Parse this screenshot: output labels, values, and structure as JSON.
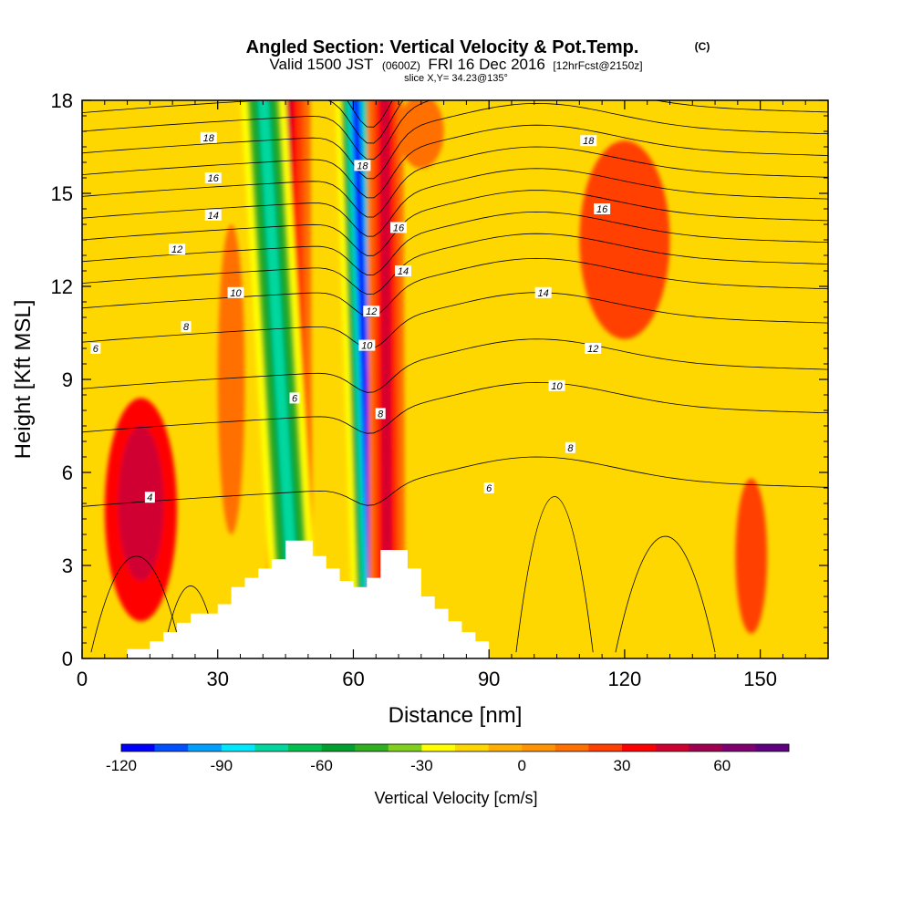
{
  "header": {
    "title": "Angled Section: Vertical Velocity & Pot.Temp.",
    "title_mark": "(C)",
    "valid_a": "Valid 1500 JST",
    "valid_b": "(0600Z)",
    "valid_c": "FRI 16 Dec 2016",
    "valid_d": "[12hrFcst@2150z]",
    "slice": "slice X,Y= 34.23@135°"
  },
  "chart_data": {
    "type": "contour-filled cross-section",
    "xlabel": "Distance [nm]",
    "ylabel": "Height [Kft MSL]",
    "xlim": [
      0,
      165
    ],
    "ylim": [
      0,
      18
    ],
    "x_ticks": [
      0,
      30,
      60,
      90,
      120,
      150
    ],
    "y_ticks": [
      0,
      3,
      6,
      9,
      12,
      15,
      18
    ],
    "colorbar": {
      "label": "Vertical Velocity [cm/s]",
      "min": -120,
      "step": 10,
      "tick_labels": [
        "-120",
        "-90",
        "-60",
        "-30",
        "0",
        "30",
        "60"
      ],
      "colors": [
        "#0000ff",
        "#0050ff",
        "#00a0ff",
        "#00e8ff",
        "#00d8a0",
        "#00c050",
        "#00a030",
        "#30b020",
        "#80d020",
        "#ffff00",
        "#ffd700",
        "#ffb000",
        "#ff9400",
        "#ff7000",
        "#ff4000",
        "#ff0000",
        "#d00030",
        "#a00050",
        "#800070",
        "#600080"
      ]
    },
    "terrain": [
      [
        10,
        0.3
      ],
      [
        15,
        0.3
      ],
      [
        15,
        0.55
      ],
      [
        18,
        0.55
      ],
      [
        18,
        0.85
      ],
      [
        21,
        0.85
      ],
      [
        21,
        1.15
      ],
      [
        24,
        1.15
      ],
      [
        24,
        1.45
      ],
      [
        30,
        1.45
      ],
      [
        30,
        1.75
      ],
      [
        33,
        1.75
      ],
      [
        33,
        2.3
      ],
      [
        36,
        2.3
      ],
      [
        36,
        2.6
      ],
      [
        39,
        2.6
      ],
      [
        39,
        2.9
      ],
      [
        42,
        2.9
      ],
      [
        42,
        3.2
      ],
      [
        45,
        3.2
      ],
      [
        45,
        3.8
      ],
      [
        51,
        3.8
      ],
      [
        51,
        3.3
      ],
      [
        54,
        3.3
      ],
      [
        54,
        2.9
      ],
      [
        57,
        2.9
      ],
      [
        57,
        2.5
      ],
      [
        60,
        2.5
      ],
      [
        60,
        2.3
      ],
      [
        63,
        2.3
      ],
      [
        63,
        2.6
      ],
      [
        66,
        2.6
      ],
      [
        66,
        3.5
      ],
      [
        72,
        3.5
      ],
      [
        72,
        2.9
      ],
      [
        75,
        2.9
      ],
      [
        75,
        2.0
      ],
      [
        78,
        2.0
      ],
      [
        78,
        1.6
      ],
      [
        81,
        1.6
      ],
      [
        81,
        1.2
      ],
      [
        84,
        1.2
      ],
      [
        84,
        0.85
      ],
      [
        87,
        0.85
      ],
      [
        87,
        0.55
      ],
      [
        90,
        0.55
      ],
      [
        90,
        0.3
      ]
    ],
    "vv_cells": [
      {
        "x": 13,
        "y": 4.8,
        "rx": 8,
        "ry": 3.6,
        "w": 30
      },
      {
        "x": 13,
        "y": 5.0,
        "rx": 5,
        "ry": 2.5,
        "w": 40
      },
      {
        "x": 120,
        "y": 13.5,
        "rx": 10,
        "ry": 3.2,
        "w": 20
      },
      {
        "x": 148,
        "y": 3.3,
        "rx": 3.5,
        "ry": 2.5,
        "w": 20
      },
      {
        "x": 33,
        "y": 9,
        "rx": 3,
        "ry": 5,
        "w": 10
      },
      {
        "x": 75,
        "y": 17,
        "rx": 5,
        "ry": 1.2,
        "w": 15
      }
    ],
    "vv_bands": [
      {
        "name": "updraft-west",
        "top_x": 45.5,
        "bot_x": 46,
        "half": [
          5,
          3.5,
          2,
          0.9
        ],
        "w": [
          10,
          20,
          30,
          40
        ]
      },
      {
        "name": "downdraft-west",
        "top_x": 40,
        "bot_x": 47.5,
        "half": [
          5,
          3.5,
          2.2,
          1.2
        ],
        "w": [
          -30,
          -45,
          -60,
          -75
        ]
      },
      {
        "name": "downdraft-main",
        "top_x": 60.5,
        "bot_x": 64.5,
        "half": [
          4.5,
          3.2,
          2.2,
          1.3,
          0.7
        ],
        "w": [
          -30,
          -55,
          -80,
          -100,
          -120
        ]
      },
      {
        "name": "updraft-main",
        "top_x": 67,
        "bot_x": 67.5,
        "half": [
          4,
          2.7,
          1.7,
          0.9
        ],
        "w": [
          10,
          20,
          30,
          40
        ]
      }
    ],
    "theta_labels": [
      {
        "x": 3,
        "y": 10,
        "t": "6"
      },
      {
        "x": 15,
        "y": 5.2,
        "t": "4"
      },
      {
        "x": 23,
        "y": 10.7,
        "t": "8"
      },
      {
        "x": 21,
        "y": 13.2,
        "t": "12"
      },
      {
        "x": 29,
        "y": 14.3,
        "t": "14"
      },
      {
        "x": 29,
        "y": 15.5,
        "t": "16"
      },
      {
        "x": 28,
        "y": 16.8,
        "t": "18"
      },
      {
        "x": 34,
        "y": 11.8,
        "t": "10"
      },
      {
        "x": 47,
        "y": 8.4,
        "t": "6"
      },
      {
        "x": 62,
        "y": 15.9,
        "t": "18"
      },
      {
        "x": 70,
        "y": 13.9,
        "t": "16"
      },
      {
        "x": 71,
        "y": 12.5,
        "t": "14"
      },
      {
        "x": 64,
        "y": 11.2,
        "t": "12"
      },
      {
        "x": 63,
        "y": 10.1,
        "t": "10"
      },
      {
        "x": 66,
        "y": 7.9,
        "t": "8"
      },
      {
        "x": 90,
        "y": 5.5,
        "t": "6"
      },
      {
        "x": 108,
        "y": 6.8,
        "t": "8"
      },
      {
        "x": 105,
        "y": 8.8,
        "t": "10"
      },
      {
        "x": 113,
        "y": 10.0,
        "t": "12"
      },
      {
        "x": 102,
        "y": 11.8,
        "t": "14"
      },
      {
        "x": 115,
        "y": 14.5,
        "t": "16"
      },
      {
        "x": 112,
        "y": 16.7,
        "t": "18"
      }
    ]
  }
}
